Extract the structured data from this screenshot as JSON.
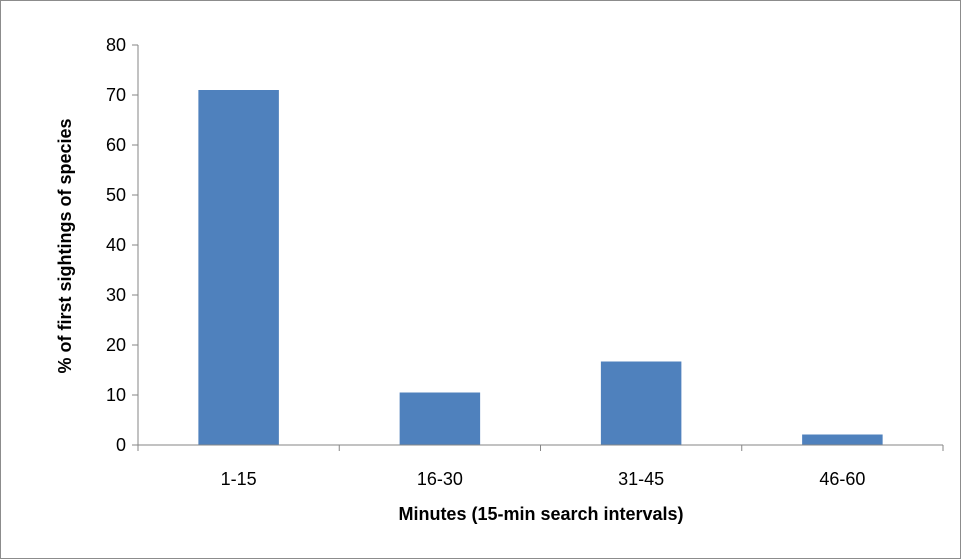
{
  "chart_data": {
    "type": "bar",
    "categories": [
      "1-15",
      "16-30",
      "31-45",
      "46-60"
    ],
    "values": [
      71,
      10.5,
      16.7,
      2.1
    ],
    "xlabel": "Minutes (15-min search intervals)",
    "ylabel": "% of first sightings of species",
    "ylim": [
      0,
      80
    ],
    "yticks": [
      0,
      10,
      20,
      30,
      40,
      50,
      60,
      70,
      80
    ],
    "grid": false,
    "legend": "none",
    "colors": {
      "bar": "#4f81bd",
      "axis": "#868686",
      "frame": "#8c8c8c"
    }
  }
}
